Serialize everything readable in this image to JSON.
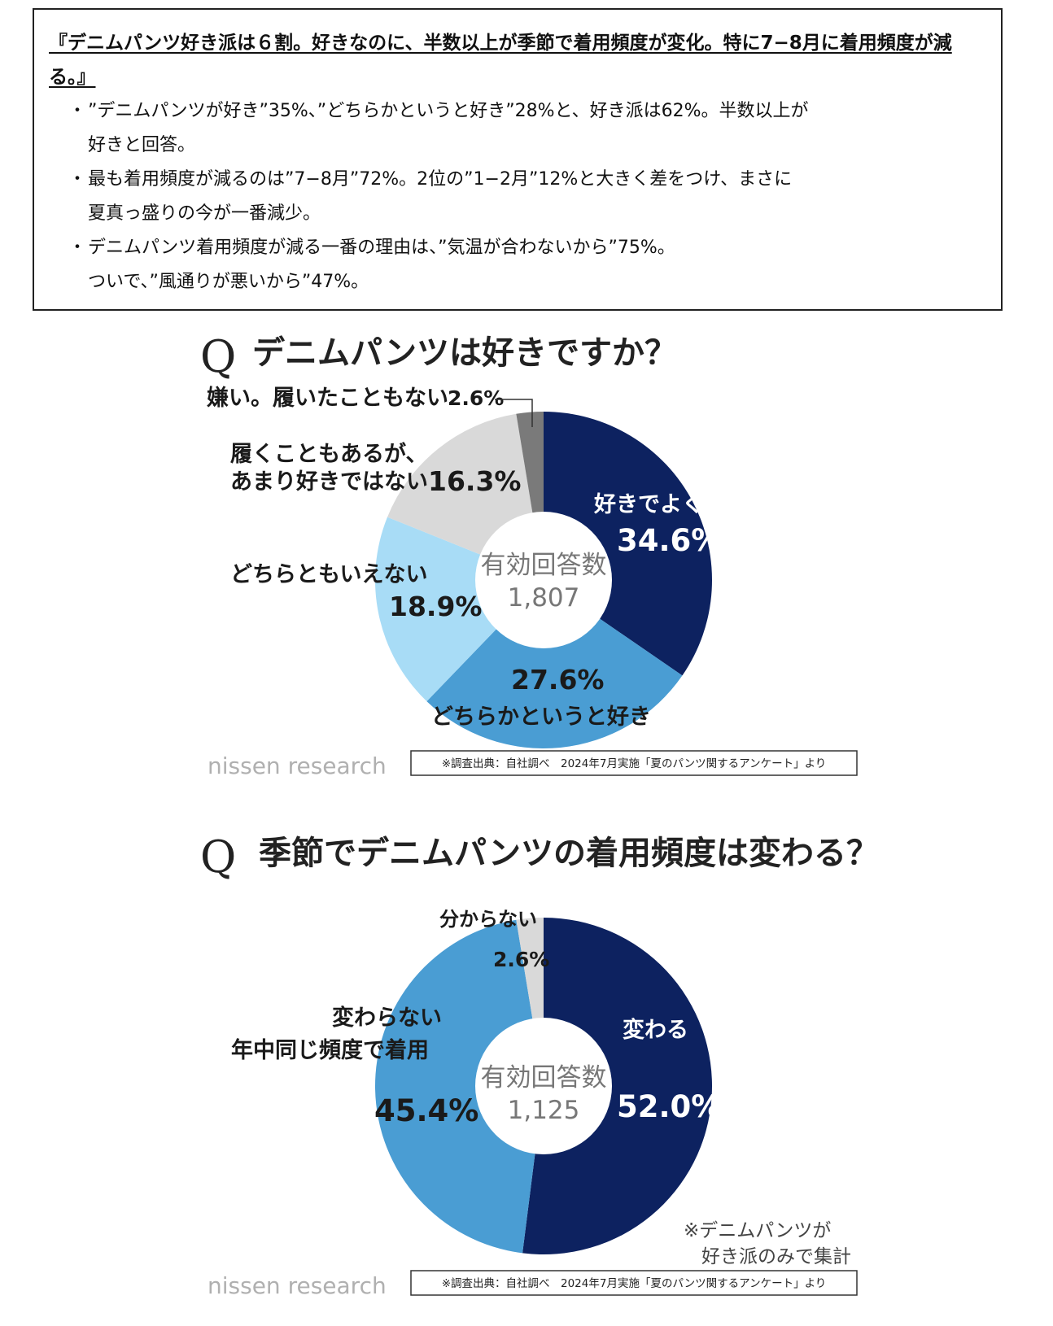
{
  "summary": {
    "title": "『デニムパンツ好き派は６割。好きなのに、半数以上が季節で着用頻度が変化。特に7−8月に着用頻度が減る。』",
    "bullets": [
      [
        "”デニムパンツが好き”35%、”どちらかというと好き”28%と、好き派は62%。半数以上が",
        "好きと回答。"
      ],
      [
        "最も着用頻度が減るのは”7−8月”72%。2位の”1−2月”12%と大きく差をつけ、まさに",
        "夏真っ盛りの今が一番減少。"
      ],
      [
        "デニムパンツ着用頻度が減る一番の理由は、”気温が合わないから”75%。",
        "ついで、”風通りが悪いから”47%。"
      ]
    ]
  },
  "chart1": {
    "question_mark": "Q",
    "question": "デニムパンツは好きですか？",
    "center_label": "有効回答数",
    "center_value": "1,807",
    "labels": {
      "s1": "好きでよく履いている",
      "s2": "どちらかというと好き",
      "s3": "どちらともいえない",
      "s4_line1": "履くこともあるが、",
      "s4_line2": "あまり好きではない",
      "s5": "嫌い。履いたこともない"
    },
    "pcts": {
      "s1": "34.6%",
      "s2": "27.6%",
      "s3": "18.9%",
      "s4": "16.3%",
      "s5": "2.6%"
    },
    "brand": "nissen research",
    "source": "※調査出典：自社調べ　2024年7月実施「夏のパンツ関するアンケート」より"
  },
  "chart2": {
    "question_mark": "Q",
    "question": "季節でデニムパンツの着用頻度は変わる？",
    "center_label": "有効回答数",
    "center_value": "1,125",
    "labels": {
      "s1": "変わる",
      "s2_line1": "変わらない",
      "s2_line2": "年中同じ頻度で着用",
      "s3": "分からない"
    },
    "pcts": {
      "s1": "52.0%",
      "s2": "45.4%",
      "s3": "2.6%"
    },
    "note_line1": "※デニムパンツが",
    "note_line2": "好き派のみで集計",
    "brand": "nissen research",
    "source": "※調査出典：自社調べ　2024年7月実施「夏のパンツ関するアンケート」より"
  },
  "chart_data": [
    {
      "type": "pie",
      "title": "デニムパンツは好きですか？",
      "categories": [
        "好きでよく履いている",
        "どちらかというと好き",
        "どちらともいえない",
        "履くこともあるが、あまり好きではない",
        "嫌い。履いたこともない"
      ],
      "values": [
        34.6,
        27.6,
        18.9,
        16.3,
        2.6
      ],
      "colors": [
        "#0d2260",
        "#4a9dd3",
        "#a8dcf6",
        "#d9d9d9",
        "#7a7a7a"
      ],
      "total_responses": "1,807"
    },
    {
      "type": "pie",
      "title": "季節でデニムパンツの着用頻度は変わる？",
      "categories": [
        "変わる",
        "変わらない 年中同じ頻度で着用",
        "分からない"
      ],
      "values": [
        52.0,
        45.4,
        2.6
      ],
      "colors": [
        "#0d2260",
        "#4a9dd3",
        "#d9d9d9"
      ],
      "total_responses": "1,125"
    }
  ]
}
